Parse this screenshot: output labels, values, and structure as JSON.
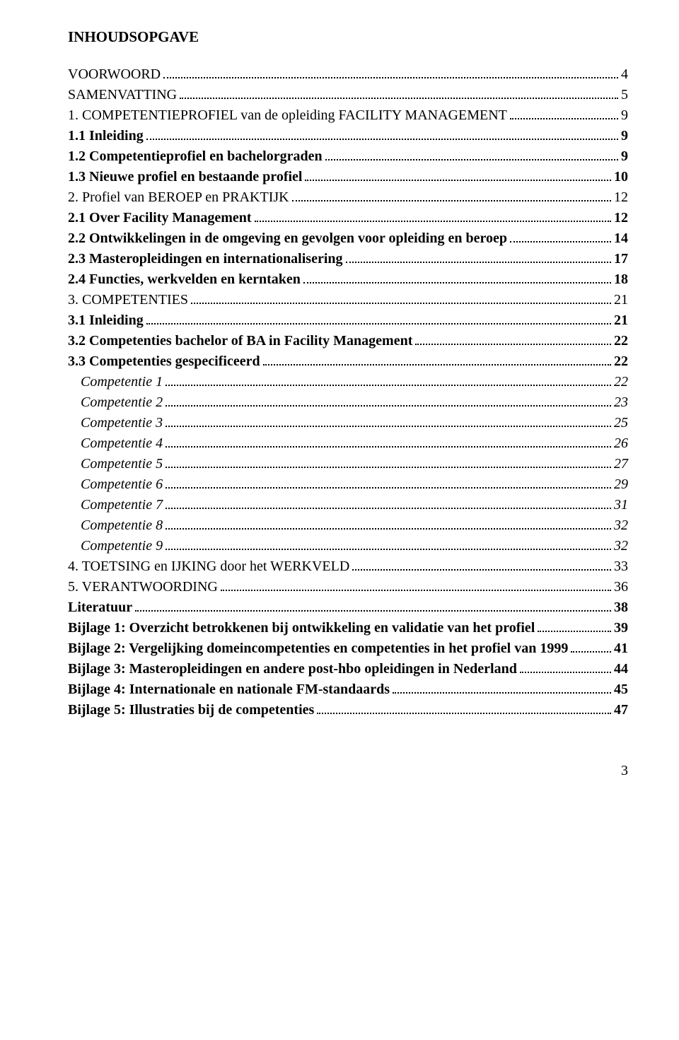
{
  "title": "INHOUDSOPGAVE",
  "entries": [
    {
      "label": "VOORWOORD",
      "page": "4",
      "bold": false,
      "italic": false,
      "indent": 0
    },
    {
      "label": "SAMENVATTING",
      "page": "5",
      "bold": false,
      "italic": false,
      "indent": 0
    },
    {
      "label": "1. COMPETENTIEPROFIEL van de opleiding FACILITY MANAGEMENT",
      "page": "9",
      "bold": false,
      "italic": false,
      "indent": 0
    },
    {
      "label": "1.1 Inleiding",
      "page": "9",
      "bold": true,
      "italic": false,
      "indent": 0
    },
    {
      "label": "1.2 Competentieprofiel en bachelorgraden",
      "page": "9",
      "bold": true,
      "italic": false,
      "indent": 0
    },
    {
      "label": "1.3 Nieuwe profiel en bestaande profiel",
      "page": "10",
      "bold": true,
      "italic": false,
      "indent": 0
    },
    {
      "label": "2. Profiel van BEROEP en PRAKTIJK",
      "page": "12",
      "bold": false,
      "italic": false,
      "indent": 0
    },
    {
      "label": "2.1 Over Facility Management",
      "page": "12",
      "bold": true,
      "italic": false,
      "indent": 0
    },
    {
      "label": "2.2 Ontwikkelingen in de omgeving en gevolgen voor opleiding en beroep",
      "page": "14",
      "bold": true,
      "italic": false,
      "indent": 0
    },
    {
      "label": "2.3 Masteropleidingen en internationalisering",
      "page": "17",
      "bold": true,
      "italic": false,
      "indent": 0
    },
    {
      "label": "2.4 Functies, werkvelden en kerntaken",
      "page": "18",
      "bold": true,
      "italic": false,
      "indent": 0
    },
    {
      "label": "3. COMPETENTIES",
      "page": "21",
      "bold": false,
      "italic": false,
      "indent": 0
    },
    {
      "label": "3.1 Inleiding",
      "page": "21",
      "bold": true,
      "italic": false,
      "indent": 0
    },
    {
      "label": "3.2 Competenties bachelor of BA in Facility Management",
      "page": "22",
      "bold": true,
      "italic": false,
      "indent": 0
    },
    {
      "label": "3.3 Competenties gespecificeerd",
      "page": "22",
      "bold": true,
      "italic": false,
      "indent": 0
    },
    {
      "label": "Competentie 1",
      "page": "22",
      "bold": false,
      "italic": true,
      "indent": 1
    },
    {
      "label": "Competentie 2",
      "page": "23",
      "bold": false,
      "italic": true,
      "indent": 1
    },
    {
      "label": "Competentie 3",
      "page": "25",
      "bold": false,
      "italic": true,
      "indent": 1
    },
    {
      "label": "Competentie 4",
      "page": "26",
      "bold": false,
      "italic": true,
      "indent": 1
    },
    {
      "label": "Competentie 5",
      "page": "27",
      "bold": false,
      "italic": true,
      "indent": 1
    },
    {
      "label": "Competentie 6",
      "page": "29",
      "bold": false,
      "italic": true,
      "indent": 1
    },
    {
      "label": "Competentie 7",
      "page": "31",
      "bold": false,
      "italic": true,
      "indent": 1
    },
    {
      "label": "Competentie 8",
      "page": "32",
      "bold": false,
      "italic": true,
      "indent": 1
    },
    {
      "label": "Competentie 9",
      "page": "32",
      "bold": false,
      "italic": true,
      "indent": 1
    },
    {
      "label": "4. TOETSING en IJKING door het WERKVELD",
      "page": "33",
      "bold": false,
      "italic": false,
      "indent": 0
    },
    {
      "label": "5. VERANTWOORDING",
      "page": "36",
      "bold": false,
      "italic": false,
      "indent": 0
    },
    {
      "label": "Literatuur",
      "page": "38",
      "bold": true,
      "italic": false,
      "indent": 0
    },
    {
      "label": "Bijlage 1: Overzicht betrokkenen bij ontwikkeling en validatie van het profiel",
      "page": "39",
      "bold": true,
      "italic": false,
      "indent": 0
    },
    {
      "label": "Bijlage 2: Vergelijking domeincompetenties en competenties in het profiel van 1999",
      "page": "41",
      "bold": true,
      "italic": false,
      "indent": 0
    },
    {
      "label": "Bijlage 3: Masteropleidingen en andere post-hbo opleidingen in Nederland",
      "page": "44",
      "bold": true,
      "italic": false,
      "indent": 0
    },
    {
      "label": "Bijlage 4: Internationale en nationale FM-standaards",
      "page": "45",
      "bold": true,
      "italic": false,
      "indent": 0
    },
    {
      "label": "Bijlage 5: Illustraties bij de competenties",
      "page": "47",
      "bold": true,
      "italic": false,
      "indent": 0
    }
  ],
  "footer_page": "3"
}
